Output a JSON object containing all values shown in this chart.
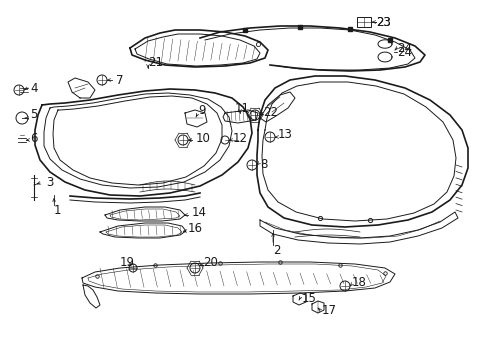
{
  "bg_color": "#ffffff",
  "line_color": "#1a1a1a",
  "fig_width": 4.9,
  "fig_height": 3.6,
  "dpi": 100,
  "font_size": 8.5
}
